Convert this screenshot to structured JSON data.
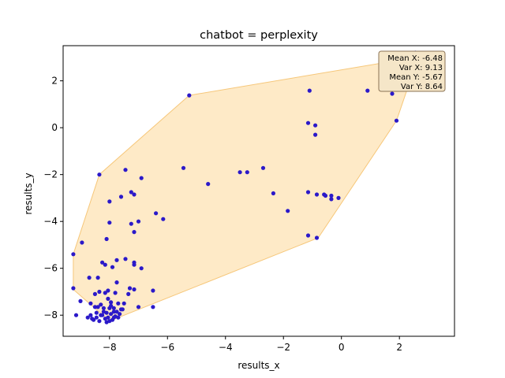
{
  "chart_data": {
    "type": "scatter",
    "title": "chatbot = perplexity",
    "xlabel": "results_x",
    "ylabel": "results_y",
    "xlim": [
      -9.6,
      3.9
    ],
    "ylim": [
      -8.9,
      3.5
    ],
    "xticks": [
      -8,
      -6,
      -4,
      -2,
      0,
      2
    ],
    "yticks": [
      -8,
      -6,
      -4,
      -2,
      0,
      2
    ],
    "xtick_labels": [
      "−8",
      "−6",
      "−4",
      "−2",
      "0",
      "2"
    ],
    "ytick_labels": [
      "−8",
      "−6",
      "−4",
      "−2",
      "0",
      "2"
    ],
    "grid": false,
    "colors": {
      "points": "#2b19c9",
      "hull_fill": "#fde3b4",
      "hull_edge": "#f6c77a",
      "box_fill": "#f5e6c8",
      "box_edge": "#8b7355"
    },
    "stats_box": {
      "placement": "top-right",
      "lines": [
        "Mean X: -6.48",
        "Var X: 9.13",
        "Mean Y: -5.67",
        "Var Y: 8.64"
      ]
    },
    "hull": [
      [
        -9.25,
        -5.4
      ],
      [
        -8.35,
        -2.0
      ],
      [
        -5.25,
        1.38
      ],
      [
        2.65,
        3.02
      ],
      [
        1.9,
        0.3
      ],
      [
        -0.8,
        -4.7
      ],
      [
        -8.0,
        -8.25
      ],
      [
        -9.25,
        -6.9
      ]
    ],
    "points": [
      [
        -5.25,
        1.38
      ],
      [
        -1.1,
        1.58
      ],
      [
        0.9,
        1.58
      ],
      [
        1.75,
        1.45
      ],
      [
        1.9,
        0.3
      ],
      [
        -1.15,
        0.2
      ],
      [
        -0.9,
        0.1
      ],
      [
        -0.9,
        -0.3
      ],
      [
        2.4,
        3.15
      ],
      [
        2.55,
        3.2
      ],
      [
        -8.35,
        -2.0
      ],
      [
        -7.45,
        -1.8
      ],
      [
        -6.9,
        -2.15
      ],
      [
        -5.45,
        -1.72
      ],
      [
        -4.6,
        -2.4
      ],
      [
        -3.5,
        -1.9
      ],
      [
        -3.25,
        -1.9
      ],
      [
        -2.7,
        -1.72
      ],
      [
        -2.35,
        -2.8
      ],
      [
        -1.85,
        -3.55
      ],
      [
        -1.15,
        -2.75
      ],
      [
        -0.85,
        -2.85
      ],
      [
        -0.6,
        -2.85
      ],
      [
        -0.55,
        -2.9
      ],
      [
        -0.35,
        -2.9
      ],
      [
        -0.35,
        -3.05
      ],
      [
        -0.1,
        -3.0
      ],
      [
        -1.15,
        -4.6
      ],
      [
        -0.85,
        -4.7
      ],
      [
        -7.25,
        -2.75
      ],
      [
        -7.15,
        -2.85
      ],
      [
        -7.6,
        -2.95
      ],
      [
        -8.0,
        -3.15
      ],
      [
        -6.4,
        -3.65
      ],
      [
        -6.15,
        -3.9
      ],
      [
        -7.0,
        -4.0
      ],
      [
        -7.25,
        -4.1
      ],
      [
        -8.0,
        -4.05
      ],
      [
        -7.15,
        -4.45
      ],
      [
        -8.1,
        -4.75
      ],
      [
        -8.95,
        -4.9
      ],
      [
        -9.25,
        -5.4
      ],
      [
        -7.75,
        -5.65
      ],
      [
        -7.45,
        -5.6
      ],
      [
        -8.25,
        -5.75
      ],
      [
        -8.15,
        -5.85
      ],
      [
        -7.9,
        -5.95
      ],
      [
        -7.15,
        -5.75
      ],
      [
        -7.15,
        -5.85
      ],
      [
        -6.9,
        -6.0
      ],
      [
        -8.7,
        -6.4
      ],
      [
        -8.4,
        -6.4
      ],
      [
        -7.75,
        -6.6
      ],
      [
        -9.25,
        -6.85
      ],
      [
        -7.3,
        -6.85
      ],
      [
        -7.15,
        -6.9
      ],
      [
        -6.5,
        -6.95
      ],
      [
        -8.35,
        -7.0
      ],
      [
        -8.5,
        -7.1
      ],
      [
        -8.15,
        -7.05
      ],
      [
        -8.05,
        -6.95
      ],
      [
        -7.8,
        -7.05
      ],
      [
        -7.35,
        -7.1
      ],
      [
        -9.0,
        -7.4
      ],
      [
        -8.65,
        -7.5
      ],
      [
        -8.3,
        -7.55
      ],
      [
        -8.05,
        -7.3
      ],
      [
        -7.95,
        -7.45
      ],
      [
        -7.7,
        -7.5
      ],
      [
        -7.5,
        -7.5
      ],
      [
        -8.5,
        -7.65
      ],
      [
        -8.4,
        -7.65
      ],
      [
        -8.2,
        -7.7
      ],
      [
        -8.0,
        -7.7
      ],
      [
        -7.85,
        -7.7
      ],
      [
        -7.6,
        -7.75
      ],
      [
        -7.0,
        -7.65
      ],
      [
        -6.5,
        -7.65
      ],
      [
        -9.15,
        -8.0
      ],
      [
        -8.75,
        -8.1
      ],
      [
        -8.65,
        -8.0
      ],
      [
        -8.55,
        -8.2
      ],
      [
        -8.45,
        -8.1
      ],
      [
        -8.35,
        -8.25
      ],
      [
        -8.25,
        -8.0
      ],
      [
        -8.15,
        -8.15
      ],
      [
        -8.1,
        -8.3
      ],
      [
        -8.05,
        -8.1
      ],
      [
        -7.95,
        -7.95
      ],
      [
        -7.9,
        -8.2
      ],
      [
        -7.85,
        -7.85
      ],
      [
        -7.8,
        -8.05
      ],
      [
        -7.75,
        -7.85
      ],
      [
        -7.7,
        -8.1
      ],
      [
        -7.65,
        -7.95
      ],
      [
        -7.55,
        -7.75
      ],
      [
        -8.2,
        -7.85
      ],
      [
        -8.3,
        -8.0
      ],
      [
        -8.0,
        -8.25
      ],
      [
        -7.95,
        -7.6
      ],
      [
        -8.45,
        -7.9
      ],
      [
        -8.1,
        -7.9
      ],
      [
        -7.85,
        -8.1
      ],
      [
        -8.6,
        -8.15
      ]
    ]
  }
}
